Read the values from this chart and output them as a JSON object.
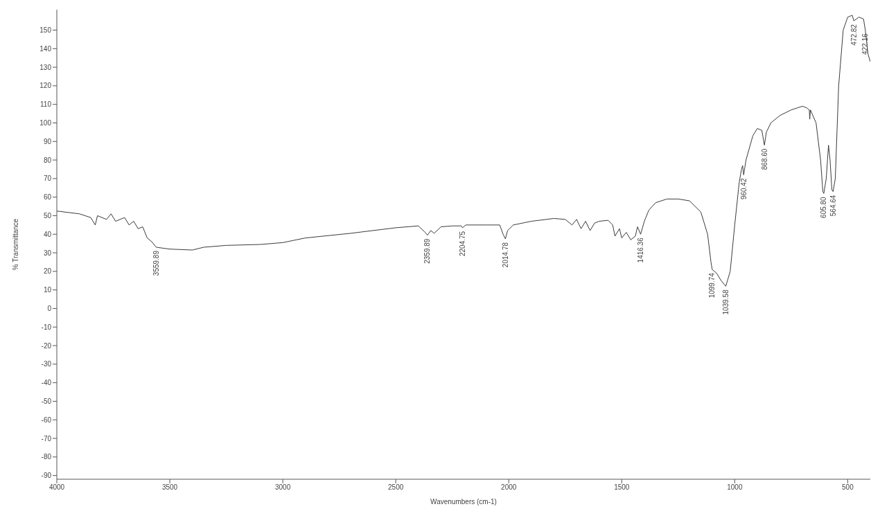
{
  "chart_data": {
    "type": "line",
    "xlabel": "Wavenumbers (cm-1)",
    "ylabel": "% Transmittance",
    "x": [
      4000,
      3900,
      3850,
      3830,
      3820,
      3780,
      3760,
      3740,
      3700,
      3680,
      3660,
      3640,
      3620,
      3600,
      3580,
      3560,
      3500,
      3400,
      3350,
      3250,
      3100,
      3000,
      2900,
      2700,
      2500,
      2400,
      2370,
      2359.89,
      2345,
      2330,
      2300,
      2250,
      2210,
      2204.75,
      2190,
      2100,
      2040,
      2025,
      2014.78,
      2005,
      1980,
      1900,
      1800,
      1750,
      1720,
      1700,
      1680,
      1660,
      1640,
      1620,
      1600,
      1560,
      1540,
      1530,
      1510,
      1500,
      1480,
      1460,
      1440,
      1430,
      1416.36,
      1400,
      1380,
      1350,
      1300,
      1250,
      1200,
      1150,
      1120,
      1105,
      1099.74,
      1080,
      1060,
      1039.58,
      1020,
      1000,
      980,
      970,
      965,
      960.42,
      950,
      920,
      900,
      880,
      868.6,
      860,
      840,
      800,
      750,
      700,
      680,
      670,
      668,
      665,
      640,
      620,
      610,
      605.8,
      595,
      585,
      578,
      570,
      564.64,
      555,
      540,
      520,
      500,
      480,
      473,
      450,
      430,
      422.16,
      410,
      400
    ],
    "series": [
      {
        "color": "#3a3a3a",
        "values": [
          52.5,
          51,
          49,
          45,
          50,
          48,
          51,
          47,
          49,
          45,
          47,
          43,
          44,
          38,
          36,
          33,
          32,
          31.5,
          33,
          34,
          34.5,
          35.5,
          38,
          40.5,
          43.5,
          44.5,
          41,
          39.5,
          42,
          40.5,
          44,
          44.5,
          44.5,
          43.5,
          45,
          45,
          45,
          40,
          37.5,
          42,
          45,
          47,
          48.5,
          48,
          45,
          48,
          43,
          47,
          42,
          46,
          47,
          47.5,
          45,
          39,
          43,
          38,
          41,
          37,
          39,
          44,
          40,
          47,
          53,
          57,
          59,
          59,
          58,
          52,
          40,
          25,
          21,
          19,
          15,
          12,
          20,
          45,
          68,
          75,
          77,
          72,
          80,
          93,
          97,
          96,
          88,
          95,
          100,
          104,
          107,
          109,
          108,
          107,
          102,
          107,
          100,
          80,
          63,
          62,
          70,
          88,
          80,
          64,
          63,
          70,
          120,
          150,
          157,
          158,
          155,
          157,
          156,
          150,
          137,
          133
        ]
      }
    ],
    "annotations": [
      {
        "text": "3559.89",
        "x": 3559.89,
        "y": 33
      },
      {
        "text": "2359.89",
        "x": 2359.89,
        "y": 39.5
      },
      {
        "text": "2204.75",
        "x": 2204.75,
        "y": 43.5
      },
      {
        "text": "2014.78",
        "x": 2014.78,
        "y": 37.5
      },
      {
        "text": "1416.36",
        "x": 1416.36,
        "y": 40
      },
      {
        "text": "1099.74",
        "x": 1099.74,
        "y": 21
      },
      {
        "text": "1039.58",
        "x": 1039.58,
        "y": 12
      },
      {
        "text": "960.42",
        "x": 960.42,
        "y": 72
      },
      {
        "text": "868.60",
        "x": 868.6,
        "y": 88
      },
      {
        "text": "605.80",
        "x": 605.8,
        "y": 62
      },
      {
        "text": "564.64",
        "x": 564.64,
        "y": 63
      },
      {
        "text": "472.82",
        "x": 472.82,
        "y": 155
      },
      {
        "text": "422.16",
        "x": 422.16,
        "y": 150
      }
    ],
    "xlim": [
      4000,
      400
    ],
    "xticks": [
      4000,
      3500,
      3000,
      2500,
      2000,
      1500,
      1000,
      500
    ],
    "ylim": [
      -92,
      161
    ],
    "yticks": [
      -90,
      -80,
      -70,
      -60,
      -50,
      -40,
      -30,
      -20,
      -10,
      0,
      10,
      20,
      30,
      40,
      50,
      60,
      70,
      80,
      90,
      100,
      110,
      120,
      130,
      140,
      150
    ],
    "grid": false,
    "legend": false,
    "marker": "none",
    "line_style": "solid"
  }
}
